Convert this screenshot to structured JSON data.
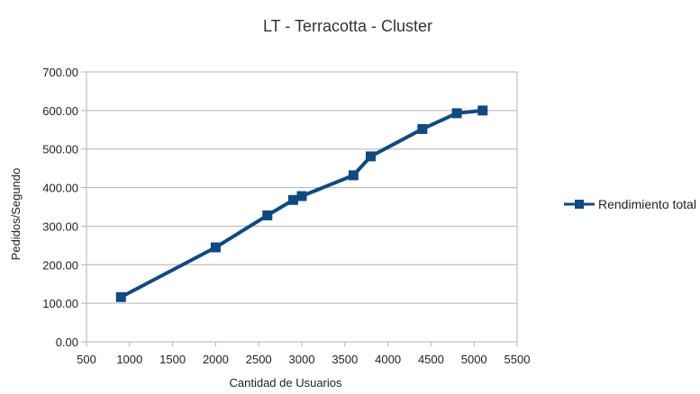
{
  "chart_data": {
    "type": "line",
    "title": "LT - Terracotta - Cluster",
    "xlabel": "Cantidad de Usuarios",
    "ylabel": "Pedidos/Segundo",
    "xlim": [
      500,
      5500
    ],
    "ylim": [
      0,
      700
    ],
    "x_ticks": [
      500,
      1000,
      1500,
      2000,
      2500,
      3000,
      3500,
      4000,
      4500,
      5000,
      5500
    ],
    "y_ticks": [
      "0.00",
      "100.00",
      "200.00",
      "300.00",
      "400.00",
      "500.00",
      "600.00",
      "700.00"
    ],
    "y_tick_values": [
      0,
      100,
      200,
      300,
      400,
      500,
      600,
      700
    ],
    "grid": "horizontal",
    "legend_position": "right",
    "series": [
      {
        "name": "Rendimiento total",
        "color": "#0d4a86",
        "marker": "square",
        "x": [
          900,
          2000,
          2600,
          2900,
          3000,
          3600,
          3800,
          4400,
          4800,
          5100
        ],
        "y": [
          116,
          245,
          328,
          368,
          378,
          432,
          481,
          552,
          593,
          600
        ]
      }
    ]
  }
}
